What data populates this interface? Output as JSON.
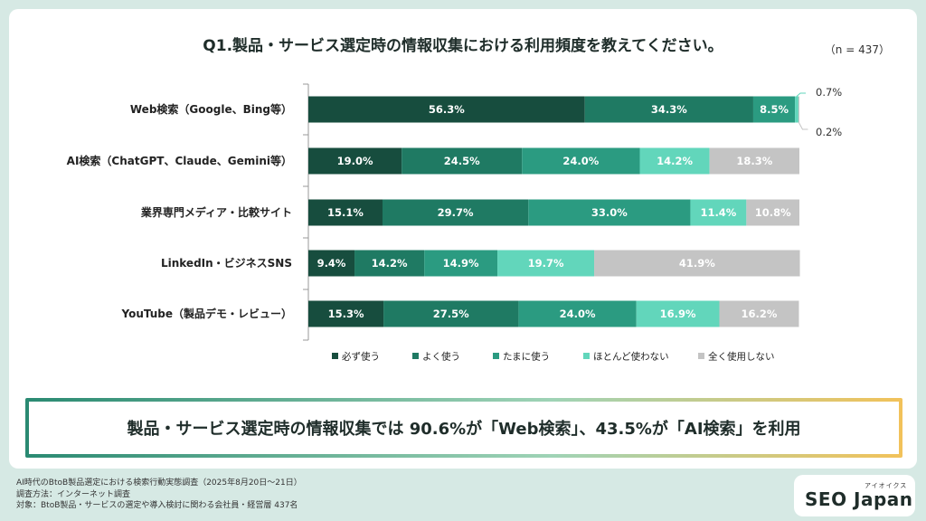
{
  "title": "Q1.製品・サービス選定時の情報収集における利用頻度を教えてください。",
  "n_label": "（n = 437）",
  "colors": {
    "always": "#174d3e",
    "often": "#1f7a63",
    "sometimes": "#2b9b81",
    "rarely": "#62d6bb",
    "never": "#c4c4c4",
    "accent_start": "#2a8a72",
    "accent_end": "#f2c25a"
  },
  "chart_data": {
    "type": "bar",
    "orientation": "horizontal",
    "stacked": true,
    "percent_stacked": true,
    "categories": [
      "Web検索（Google、Bing等）",
      "AI検索（ChatGPT、Claude、Gemini等）",
      "業界専門メディア・比較サイト",
      "LinkedIn・ビジネスSNS",
      "YouTube（製品デモ・レビュー）"
    ],
    "series": [
      {
        "name": "必ず使う",
        "values": [
          56.3,
          19.0,
          15.1,
          9.4,
          15.3
        ],
        "labels": [
          "56.3%",
          "19.0%",
          "15.1%",
          "9.4%",
          "15.3%"
        ]
      },
      {
        "name": "よく使う",
        "values": [
          34.3,
          24.5,
          29.7,
          14.2,
          27.5
        ],
        "labels": [
          "34.3%",
          "24.5%",
          "29.7%",
          "14.2%",
          "27.5%"
        ]
      },
      {
        "name": "たまに使う",
        "values": [
          8.5,
          24.0,
          33.0,
          14.9,
          24.0
        ],
        "labels": [
          "8.5%",
          "24.0%",
          "33.0%",
          "14.9%",
          "24.0%"
        ]
      },
      {
        "name": "ほとんど使わない",
        "values": [
          0.7,
          14.2,
          11.4,
          19.7,
          16.9
        ],
        "labels": [
          "0.7%",
          "14.2%",
          "11.4%",
          "19.7%",
          "16.9%"
        ]
      },
      {
        "name": "全く使用しない",
        "values": [
          0.2,
          18.3,
          10.8,
          41.9,
          16.2
        ],
        "labels": [
          "0.2%",
          "18.3%",
          "10.8%",
          "41.9%",
          "16.2%"
        ]
      }
    ],
    "xlim": [
      0,
      100
    ],
    "legend_position": "bottom",
    "grid": false
  },
  "summary": "製品・サービス選定時の情報収集では 90.6%が「Web検索」、43.5%が「AI検索」を利用",
  "footnotes": [
    "AI時代のBtoB製品選定における検索行動実態調査（2025年8月20日～21日）",
    "調査方法：インターネット調査",
    "対象：BtoB製品・サービスの選定や導入検討に関わる会社員・経営層 437名"
  ],
  "logo": {
    "text": "SEO Japan",
    "sub": "アイオイクス"
  }
}
